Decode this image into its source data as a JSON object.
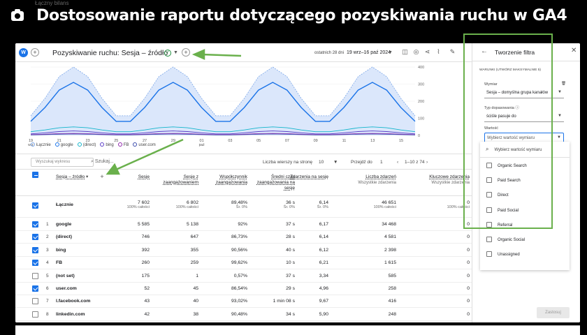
{
  "banner": {
    "title": "Dostosowanie raportu dotyczącego pozyskiwania ruchu w GA4",
    "top_strip": "Łączny bilans"
  },
  "report": {
    "w_badge": "W",
    "title": "Pozyskiwanie ruchu: Sesja – źródło",
    "date_range_label": "ostatnich 28 dni",
    "date_range": "19 wrz–16 paź 2024",
    "chart": {
      "y_ticks": [
        "400",
        "300",
        "200",
        "100",
        "0"
      ],
      "x_ticks": [
        "19",
        "21",
        "23",
        "25",
        "27",
        "29",
        "01",
        "03",
        "05",
        "07",
        "09",
        "11",
        "13",
        "15"
      ],
      "x_sub": [
        "wrz",
        "paź"
      ],
      "legend": [
        "Łącznie",
        "google",
        "(direct)",
        "bing",
        "FB",
        "user.com"
      ]
    },
    "table": {
      "search_placeholder": "Wyszukaj wykresu",
      "search_label": "Szukaj...",
      "rows_per_page_label": "Liczba wierszy na stronę",
      "rows_per_page": "10",
      "goto_label": "Przejdź do",
      "goto_value": "1",
      "page_range": "1–10 z 74",
      "dimension_header": "Sesja – źródło",
      "columns": [
        {
          "label": "Sesje",
          "sub": ""
        },
        {
          "label": "Sesje z zaangażowaniem",
          "sub": ""
        },
        {
          "label": "Współczynnik zaangażowania",
          "sub": ""
        },
        {
          "label": "Średni czas zaangażowania na sesję",
          "sub": ""
        },
        {
          "label": "Zdarzenia na sesję",
          "sub": ""
        },
        {
          "label": "Liczba zdarzeń",
          "sub": "Wszystkie zdarzenia"
        },
        {
          "label": "Kluczowe zdarzenia",
          "sub": "Wszystkie zdarzenia"
        }
      ],
      "total": {
        "label": "Łącznie",
        "values": [
          "7 602",
          "6 802",
          "89,48%",
          "36 s",
          "6,14",
          "46 651",
          "0"
        ],
        "subs": [
          "100% całości",
          "100% całości",
          "Śr. 0%",
          "Śr. 0%",
          "Śr. 0%",
          "100% całości",
          "100% całości"
        ]
      },
      "rows": [
        {
          "idx": "1",
          "name": "google",
          "checked": true,
          "values": [
            "5 585",
            "5 138",
            "92%",
            "37 s",
            "6,17",
            "34 468",
            "0"
          ]
        },
        {
          "idx": "2",
          "name": "(direct)",
          "checked": true,
          "values": [
            "746",
            "647",
            "86,73%",
            "28 s",
            "6,14",
            "4 581",
            "0"
          ]
        },
        {
          "idx": "3",
          "name": "bing",
          "checked": true,
          "values": [
            "392",
            "355",
            "90,56%",
            "40 s",
            "6,12",
            "2 398",
            "0"
          ]
        },
        {
          "idx": "4",
          "name": "FB",
          "checked": true,
          "values": [
            "260",
            "259",
            "99,62%",
            "10 s",
            "6,21",
            "1 615",
            "0"
          ]
        },
        {
          "idx": "5",
          "name": "(not set)",
          "checked": false,
          "values": [
            "175",
            "1",
            "0,57%",
            "37 s",
            "3,34",
            "585",
            "0"
          ]
        },
        {
          "idx": "6",
          "name": "user.com",
          "checked": true,
          "values": [
            "52",
            "45",
            "86,54%",
            "29 s",
            "4,96",
            "258",
            "0"
          ]
        },
        {
          "idx": "7",
          "name": "l.facebook.com",
          "checked": false,
          "values": [
            "43",
            "40",
            "93,02%",
            "1 min 08 s",
            "9,67",
            "416",
            "0"
          ]
        },
        {
          "idx": "8",
          "name": "linkedin.com",
          "checked": false,
          "values": [
            "42",
            "38",
            "90,48%",
            "34 s",
            "5,90",
            "248",
            "0"
          ]
        }
      ]
    }
  },
  "panel": {
    "title": "Tworzenie filtra",
    "conditions_label": "WARUNKI (UTWÓRZ MAKSYMALNIE 5)",
    "dimension_label": "Wymiar",
    "dimension_value": "Sesja – domyślna grupa kanałów",
    "match_type_label": "Typ dopasowania",
    "match_type_value": "ściśle pasuje do",
    "value_label": "Wartość",
    "value_placeholder": "Wybierz wartość wymiaru",
    "search_placeholder": "Wybierz wartość wymiaru",
    "options": [
      "Organic Search",
      "Paid Search",
      "Direct",
      "Paid Social",
      "Referral",
      "Organic Social",
      "Unassigned"
    ],
    "apply_label": "Zastosuj"
  },
  "colors": {
    "accent": "#1a73e8",
    "highlight": "#6ab04c",
    "chart_fill": "#dbe7fb"
  }
}
